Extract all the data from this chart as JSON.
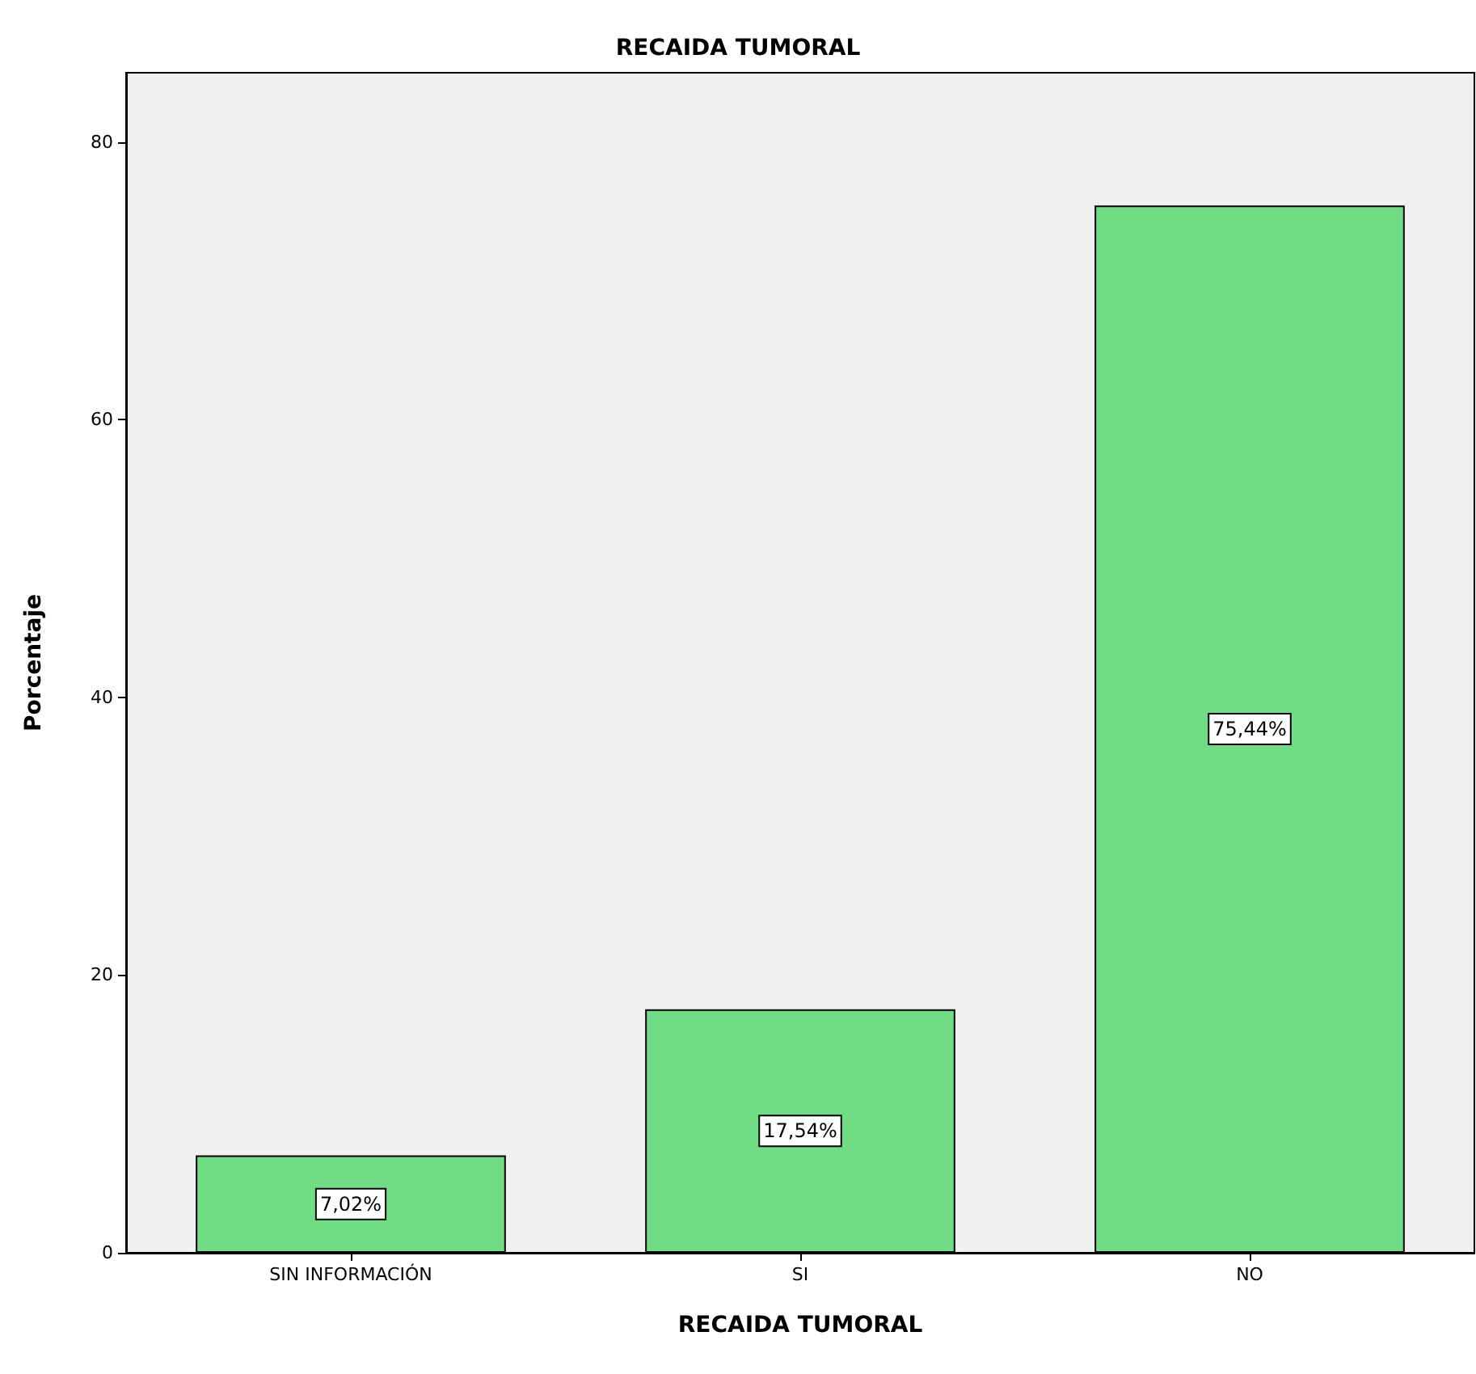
{
  "chart_data": {
    "type": "bar",
    "title": "RECAIDA TUMORAL",
    "xlabel": "RECAIDA TUMORAL",
    "ylabel": "Porcentaje",
    "categories": [
      "SIN INFORMACIÓN",
      "SI",
      "NO"
    ],
    "values": [
      7.02,
      17.54,
      75.44
    ],
    "value_labels": [
      "7,02%",
      "17,54%",
      "75,44%"
    ],
    "color": "#70dd85",
    "ylim": [
      0,
      85
    ],
    "yticks": [
      0,
      20,
      40,
      60,
      80
    ],
    "grid": false
  }
}
